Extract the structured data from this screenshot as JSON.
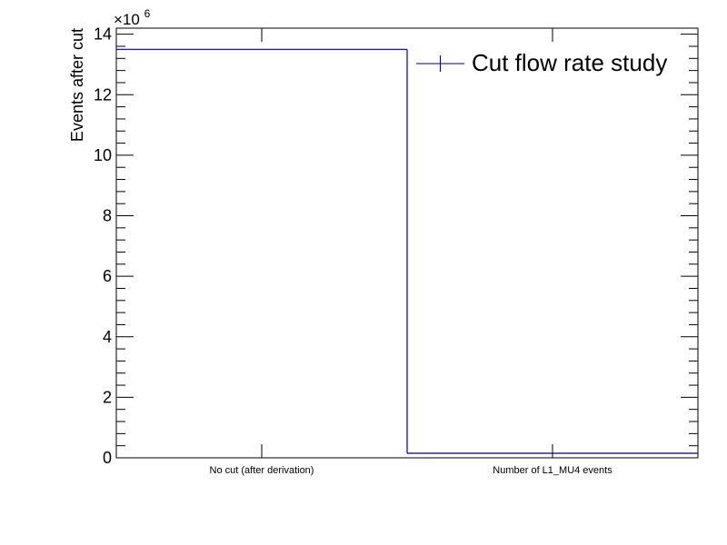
{
  "chart_data": {
    "type": "bar",
    "style": "step-histogram",
    "categories": [
      "No cut (after derivation)",
      "Number of L1_MU4 events"
    ],
    "values": [
      13500000,
      150000
    ],
    "series": [
      {
        "name": "Cut flow rate study",
        "values": [
          13500000,
          150000
        ],
        "color": "#000080"
      }
    ],
    "ylabel": "Events after cut",
    "xlabel": "",
    "ylim": [
      0,
      14200000
    ],
    "y_ticks": [
      0,
      2,
      4,
      6,
      8,
      10,
      12,
      14
    ],
    "y_multiplier_base": "×10",
    "y_multiplier_exponent": "6",
    "legend": {
      "label": "Cut flow rate study",
      "placement": "top-right"
    },
    "grid": false
  }
}
